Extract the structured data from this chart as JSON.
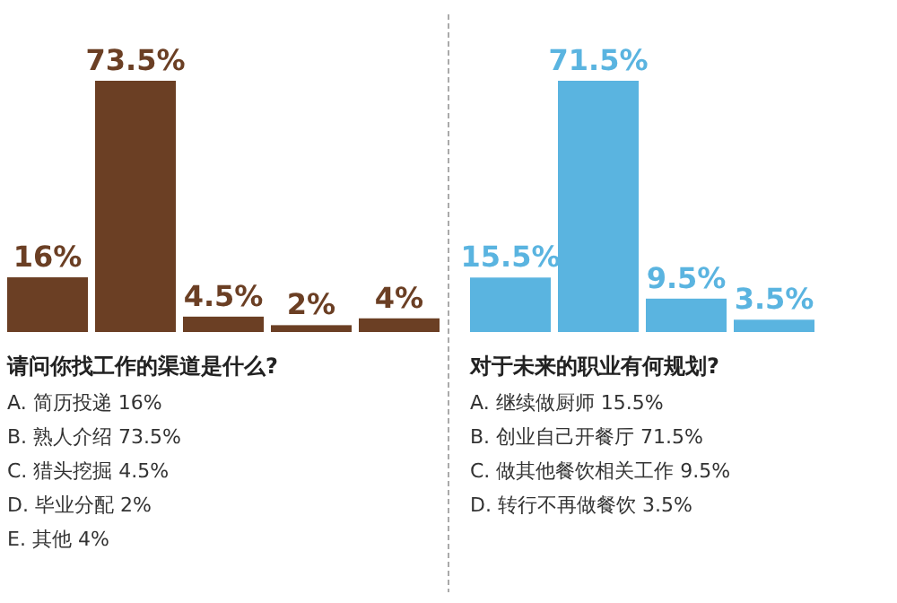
{
  "chart_data": [
    {
      "type": "bar",
      "title": "请问你找工作的渠道是什么?",
      "categories": [
        null,
        null,
        null,
        null,
        null
      ],
      "values": [
        16,
        73.5,
        4.5,
        2,
        4
      ],
      "value_labels": [
        "16%",
        "73.5%",
        "4.5%",
        "2%",
        "4%"
      ],
      "color": "#6b3f24",
      "annotations": [
        "A. 简历投递 16%",
        "B. 熟人介绍 73.5%",
        "C. 猎头挖掘 4.5%",
        "D. 毕业分配 2%",
        "E. 其他 4%"
      ]
    },
    {
      "type": "bar",
      "title": "对于未来的职业有何规划?",
      "categories": [
        null,
        null,
        null,
        null
      ],
      "values": [
        15.5,
        71.5,
        9.5,
        3.5
      ],
      "value_labels": [
        "15.5%",
        "71.5%",
        "9.5%",
        "3.5%"
      ],
      "color": "#5ab4e0",
      "annotations": [
        "A. 继续做厨师 15.5%",
        "B. 创业自己开餐厅 71.5%",
        "C. 做其他餐饮相关工作 9.5%",
        "D. 转行不再做餐饮 3.5%"
      ]
    }
  ]
}
